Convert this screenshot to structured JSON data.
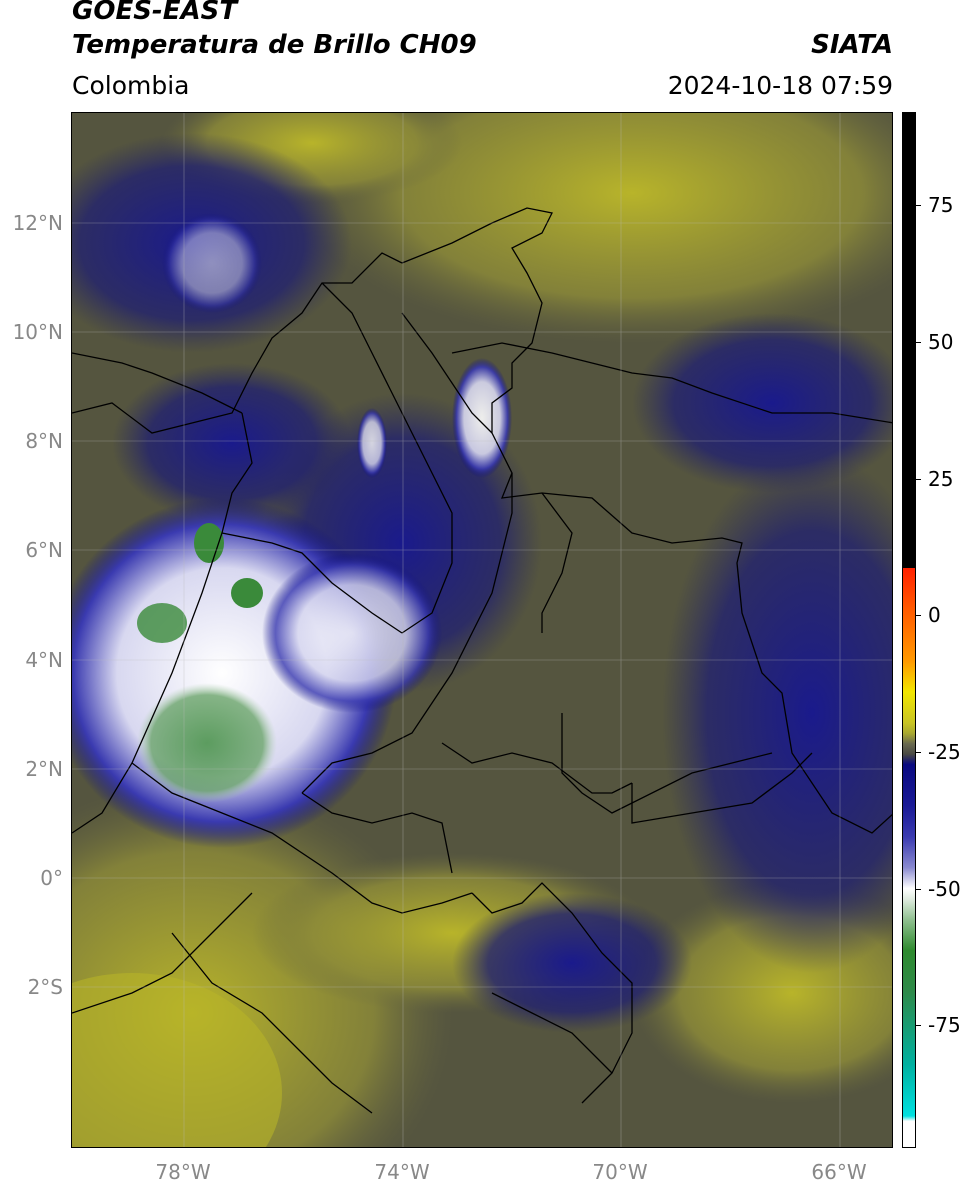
{
  "header": {
    "satellite": "GOES-EAST",
    "product": "Temperatura de Brillo CH09",
    "region": "Colombia",
    "source": "SIATA",
    "datetime": "2024-10-18 07:59"
  },
  "map": {
    "lat_ticks": [
      "12°N",
      "10°N",
      "8°N",
      "6°N",
      "4°N",
      "2°N",
      "0°",
      "2°S"
    ],
    "lon_ticks": [
      "78°W",
      "74°W",
      "70°W",
      "66°W"
    ],
    "extent": {
      "lon_min": -80.1,
      "lon_max": -65.1,
      "lat_min": -5.0,
      "lat_max": 14.0
    }
  },
  "colorbar": {
    "ticks": [
      "75",
      "50",
      "25",
      "0",
      "-25",
      "-50",
      "-75"
    ],
    "colors": {
      "black": "#000000",
      "red": "#ff2000",
      "orange": "#ff9900",
      "yellow": "#f2e600",
      "olive": "#a8a830",
      "gray": "#4a4a44",
      "navy": "#0a0a80",
      "blue": "#3a3ab0",
      "white": "#ffffff",
      "green": "#2e8a2e",
      "cyan": "#00e0e0"
    }
  }
}
